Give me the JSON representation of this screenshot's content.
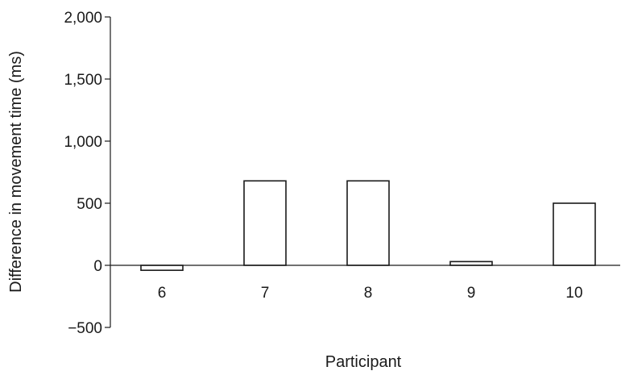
{
  "chart_data": {
    "type": "bar",
    "categories": [
      "6",
      "7",
      "8",
      "9",
      "10"
    ],
    "values": [
      -40,
      680,
      680,
      30,
      500
    ],
    "title": "",
    "xlabel": "Participant",
    "ylabel": "Difference in movement time (ms)",
    "ylim": [
      -500,
      2000
    ],
    "yticks": [
      -500,
      0,
      500,
      1000,
      1500,
      2000
    ],
    "ytick_labels": [
      "−500",
      "0",
      "500",
      "1,000",
      "1,500",
      "2,000"
    ],
    "grid": false,
    "legend": "none",
    "bar_fill": "#ffffff",
    "bar_stroke": "#1a1a1a"
  }
}
